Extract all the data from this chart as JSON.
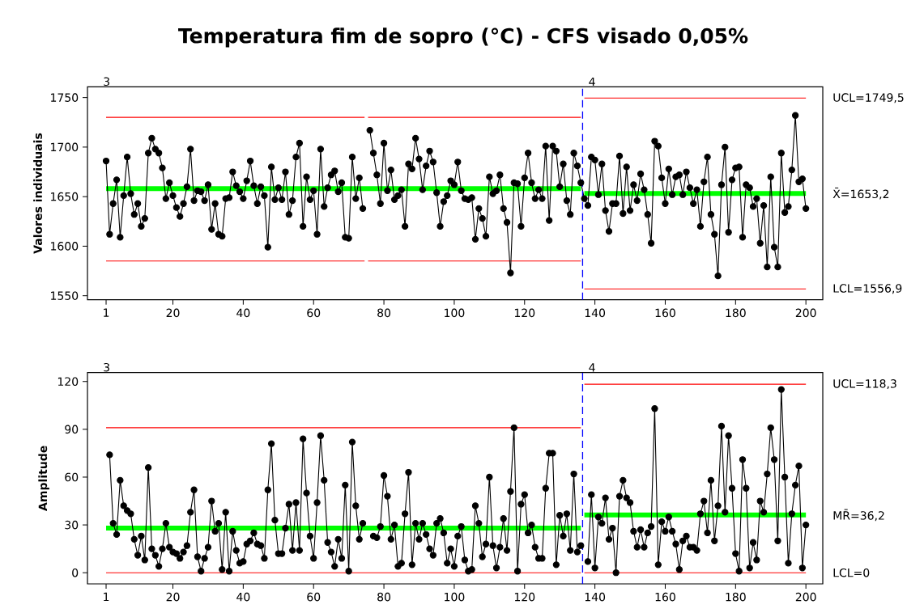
{
  "chart_data": [
    {
      "type": "line",
      "title": "Temperatura fim de sopro (°C) - CFS visado 0,05%",
      "ylabel": "Valores individuais",
      "xlim": [
        -4.3,
        204.8
      ],
      "ylim": [
        1545.9,
        1760.9
      ],
      "xticks": [
        1,
        20,
        40,
        60,
        80,
        100,
        120,
        140,
        160,
        180,
        200
      ],
      "yticks": [
        1550,
        1600,
        1650,
        1700,
        1750
      ],
      "x": [
        1,
        2,
        3,
        4,
        5,
        6,
        7,
        8,
        9,
        10,
        11,
        12,
        13,
        14,
        15,
        16,
        17,
        18,
        19,
        20,
        21,
        22,
        23,
        24,
        25,
        26,
        27,
        28,
        29,
        30,
        31,
        32,
        33,
        34,
        35,
        36,
        37,
        38,
        39,
        40,
        41,
        42,
        43,
        44,
        45,
        46,
        47,
        48,
        49,
        50,
        51,
        52,
        53,
        54,
        55,
        56,
        57,
        58,
        59,
        60,
        61,
        62,
        63,
        64,
        65,
        66,
        67,
        68,
        69,
        70,
        71,
        72,
        73,
        74,
        75,
        76,
        77,
        78,
        79,
        80,
        81,
        82,
        83,
        84,
        85,
        86,
        87,
        88,
        89,
        90,
        91,
        92,
        93,
        94,
        95,
        96,
        97,
        98,
        99,
        100,
        101,
        102,
        103,
        104,
        105,
        106,
        107,
        108,
        109,
        110,
        111,
        112,
        113,
        114,
        115,
        116,
        117,
        118,
        119,
        120,
        121,
        122,
        123,
        124,
        125,
        126,
        127,
        128,
        129,
        130,
        131,
        132,
        133,
        134,
        135,
        136,
        137,
        138,
        139,
        140,
        141,
        142,
        143,
        144,
        145,
        146,
        147,
        148,
        149,
        150,
        151,
        152,
        153,
        154,
        155,
        156,
        157,
        158,
        159,
        160,
        161,
        162,
        163,
        164,
        165,
        166,
        167,
        168,
        169,
        170,
        171,
        172,
        173,
        174,
        175,
        176,
        177,
        178,
        179,
        180,
        181,
        182,
        183,
        184,
        185,
        186,
        187,
        188,
        189,
        190,
        191,
        192,
        193,
        194,
        195,
        196,
        197,
        198,
        199,
        200
      ],
      "series": [
        {
          "type": "line",
          "color": "#ff0000",
          "marker": "none",
          "x": [
            1,
            74.5,
            75,
            75.5,
            136
          ],
          "values": [
            1730,
            1730,
            null,
            1730,
            1730
          ]
        },
        {
          "type": "line",
          "color": "#00ff00",
          "marker": "none",
          "x": [
            1,
            136
          ],
          "values": [
            1658,
            1658
          ]
        },
        {
          "type": "line",
          "color": "#ff0000",
          "marker": "none",
          "x": [
            1,
            74.5,
            75,
            75.5,
            136
          ],
          "values": [
            1585,
            1585,
            null,
            1585,
            1585
          ]
        },
        {
          "type": "line",
          "color": "#ff0000",
          "marker": "none",
          "name": "UCL=1749,5",
          "x": [
            137,
            200
          ],
          "values": [
            1749.5,
            1749.5
          ]
        },
        {
          "type": "line",
          "color": "#00ff00",
          "marker": "none",
          "name": "X̄=1653,2",
          "x": [
            137,
            200
          ],
          "values": [
            1653.2,
            1653.2
          ]
        },
        {
          "type": "line",
          "color": "#ff0000",
          "marker": "none",
          "name": "LCL=1556,9",
          "x": [
            137,
            200
          ],
          "values": [
            1556.9,
            1556.9
          ]
        },
        {
          "type": "line",
          "color": "#000000",
          "marker": "circle",
          "values": [
            1686,
            1612,
            1643,
            1667,
            1609,
            1651,
            1690,
            1653,
            1632,
            1643,
            1620,
            1628,
            1694,
            1709,
            1698,
            1694,
            1679,
            1648,
            1664,
            1651,
            1639,
            1630,
            1643,
            1660,
            1698,
            1646,
            1656,
            1655,
            1646,
            1662,
            1617,
            1643,
            1612,
            1610,
            1648,
            1649,
            1675,
            1661,
            1655,
            1648,
            1666,
            1686,
            1661,
            1643,
            1660,
            1651,
            1599,
            1680,
            1647,
            1659,
            1647,
            1675,
            1632,
            1646,
            1690,
            1704,
            1620,
            1670,
            1647,
            1656,
            1612,
            1698,
            1640,
            1659,
            1672,
            1676,
            1655,
            1664,
            1609,
            1608,
            1690,
            1648,
            1669,
            1638,
            null,
            1717,
            1694,
            1672,
            1643,
            1704,
            1656,
            1677,
            1647,
            1651,
            1657,
            1620,
            1683,
            1678,
            1709,
            1688,
            1657,
            1681,
            1696,
            1685,
            1654,
            1620,
            1645,
            1651,
            1666,
            1662,
            1685,
            1656,
            1648,
            1647,
            1649,
            1607,
            1638,
            1628,
            1610,
            1670,
            1653,
            1656,
            1672,
            1638,
            1624,
            1573,
            1664,
            1663,
            1620,
            1669,
            1694,
            1664,
            1648,
            1657,
            1648,
            1701,
            1626,
            1701,
            1696,
            1660,
            1683,
            1646,
            1632,
            1694,
            1681,
            1664,
            1648,
            1641,
            1690,
            1687,
            1652,
            1683,
            1636,
            1615,
            1643,
            1643,
            1691,
            1633,
            1680,
            1636,
            1662,
            1646,
            1673,
            1657,
            1632,
            1603,
            1706,
            1701,
            1669,
            1643,
            1678,
            1652,
            1670,
            1672,
            1652,
            1675,
            1659,
            1643,
            1657,
            1620,
            1665,
            1690,
            1632,
            1612,
            1570,
            1662,
            1700,
            1614,
            1667,
            1679,
            1680,
            1609,
            1662,
            1659,
            1640,
            1648,
            1603,
            1641,
            1579,
            1670,
            1599,
            1579,
            1694,
            1634,
            1640,
            1677,
            1732,
            1665,
            1668,
            1638
          ]
        }
      ],
      "ref_lines": [
        {
          "axis": "x",
          "value": 136.5,
          "color": "#0000ff",
          "line_style": "dashed"
        }
      ],
      "annotations": [
        "3",
        "4"
      ]
    },
    {
      "type": "line",
      "ylabel": "Amplitude",
      "xlim": [
        -4.3,
        204.8
      ],
      "ylim": [
        -7,
        125.6
      ],
      "xticks": [
        1,
        20,
        40,
        60,
        80,
        100,
        120,
        140,
        160,
        180,
        200
      ],
      "yticks": [
        0,
        30,
        60,
        90,
        120
      ],
      "x": [
        2,
        3,
        4,
        5,
        6,
        7,
        8,
        9,
        10,
        11,
        12,
        13,
        14,
        15,
        16,
        17,
        18,
        19,
        20,
        21,
        22,
        23,
        24,
        25,
        26,
        27,
        28,
        29,
        30,
        31,
        32,
        33,
        34,
        35,
        36,
        37,
        38,
        39,
        40,
        41,
        42,
        43,
        44,
        45,
        46,
        47,
        48,
        49,
        50,
        51,
        52,
        53,
        54,
        55,
        56,
        57,
        58,
        59,
        60,
        61,
        62,
        63,
        64,
        65,
        66,
        67,
        68,
        69,
        70,
        71,
        72,
        73,
        74,
        75,
        76,
        77,
        78,
        79,
        80,
        81,
        82,
        83,
        84,
        85,
        86,
        87,
        88,
        89,
        90,
        91,
        92,
        93,
        94,
        95,
        96,
        97,
        98,
        99,
        100,
        101,
        102,
        103,
        104,
        105,
        106,
        107,
        108,
        109,
        110,
        111,
        112,
        113,
        114,
        115,
        116,
        117,
        118,
        119,
        120,
        121,
        122,
        123,
        124,
        125,
        126,
        127,
        128,
        129,
        130,
        131,
        132,
        133,
        134,
        135,
        136,
        137,
        138,
        139,
        140,
        141,
        142,
        143,
        144,
        145,
        146,
        147,
        148,
        149,
        150,
        151,
        152,
        153,
        154,
        155,
        156,
        157,
        158,
        159,
        160,
        161,
        162,
        163,
        164,
        165,
        166,
        167,
        168,
        169,
        170,
        171,
        172,
        173,
        174,
        175,
        176,
        177,
        178,
        179,
        180,
        181,
        182,
        183,
        184,
        185,
        186,
        187,
        188,
        189,
        190,
        191,
        192,
        193,
        194,
        195,
        196,
        197,
        198,
        199,
        200
      ],
      "series": [
        {
          "type": "line",
          "color": "#ff0000",
          "marker": "none",
          "x": [
            1,
            136
          ],
          "values": [
            91,
            91
          ]
        },
        {
          "type": "line",
          "color": "#00ff00",
          "marker": "none",
          "x": [
            1,
            136
          ],
          "values": [
            28,
            28
          ]
        },
        {
          "type": "line",
          "color": "#ff0000",
          "marker": "none",
          "x": [
            1,
            136
          ],
          "values": [
            0,
            0
          ]
        },
        {
          "type": "line",
          "color": "#ff0000",
          "marker": "none",
          "name": "UCL=118,3",
          "x": [
            137,
            200
          ],
          "values": [
            118.3,
            118.3
          ]
        },
        {
          "type": "line",
          "color": "#00ff00",
          "marker": "none",
          "name": "MR̄=36,2",
          "x": [
            137,
            200
          ],
          "values": [
            36.2,
            36.2
          ]
        },
        {
          "type": "line",
          "color": "#ff0000",
          "marker": "none",
          "name": "LCL=0",
          "x": [
            137,
            200
          ],
          "values": [
            0,
            0
          ]
        },
        {
          "type": "line",
          "color": "#000000",
          "marker": "circle",
          "values": [
            74,
            31,
            24,
            58,
            42,
            39,
            37,
            21,
            11,
            23,
            8,
            66,
            15,
            11,
            4,
            15,
            31,
            16,
            13,
            12,
            9,
            13,
            17,
            38,
            52,
            10,
            1,
            9,
            16,
            45,
            26,
            31,
            2,
            38,
            1,
            26,
            14,
            6,
            7,
            18,
            20,
            25,
            18,
            17,
            9,
            52,
            81,
            33,
            12,
            12,
            28,
            43,
            14,
            44,
            14,
            84,
            50,
            23,
            9,
            44,
            86,
            58,
            19,
            13,
            4,
            21,
            9,
            55,
            1,
            82,
            42,
            21,
            31,
            null,
            null,
            23,
            22,
            29,
            61,
            48,
            21,
            30,
            4,
            6,
            37,
            63,
            5,
            31,
            21,
            31,
            24,
            15,
            11,
            31,
            34,
            25,
            6,
            15,
            4,
            23,
            29,
            8,
            1,
            2,
            42,
            31,
            10,
            18,
            60,
            17,
            3,
            16,
            34,
            14,
            51,
            91,
            1,
            43,
            49,
            25,
            30,
            16,
            9,
            9,
            53,
            75,
            75,
            5,
            36,
            23,
            37,
            14,
            62,
            13,
            17,
            null,
            7,
            49,
            3,
            35,
            31,
            47,
            21,
            28,
            0,
            48,
            58,
            47,
            44,
            26,
            16,
            27,
            16,
            25,
            29,
            103,
            5,
            32,
            26,
            35,
            26,
            18,
            2,
            20,
            23,
            16,
            16,
            14,
            37,
            45,
            25,
            58,
            20,
            42,
            92,
            38,
            86,
            53,
            12,
            1,
            71,
            53,
            3,
            19,
            8,
            45,
            38,
            62,
            91,
            71,
            20,
            115,
            60,
            6,
            37,
            55,
            67,
            3,
            30
          ]
        }
      ],
      "ref_lines": [
        {
          "axis": "x",
          "value": 136.5,
          "color": "#0000ff",
          "line_style": "dashed"
        }
      ],
      "annotations": [
        "3",
        "4"
      ]
    }
  ]
}
